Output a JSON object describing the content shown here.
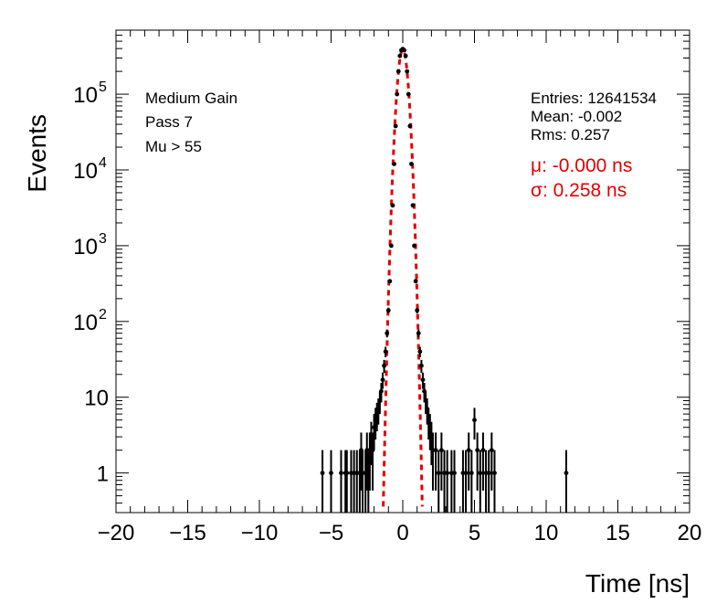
{
  "chart_data": {
    "type": "scatter",
    "title": "",
    "xlabel": "Time [ns]",
    "ylabel": "Events",
    "xlim": [
      -20,
      20
    ],
    "ylim": [
      0.3,
      700000
    ],
    "yscale": "log",
    "grid": false,
    "xticks": [
      -20,
      -15,
      -10,
      -5,
      0,
      5,
      10,
      15,
      20
    ],
    "xtick_labels": [
      "−20",
      "−15",
      "−10",
      "−5",
      "0",
      "5",
      "10",
      "15",
      "20"
    ],
    "yticks": [
      {
        "value": 1,
        "base": "1",
        "exp": ""
      },
      {
        "value": 10,
        "base": "10",
        "exp": ""
      },
      {
        "value": 100,
        "base": "10",
        "exp": "2"
      },
      {
        "value": 1000,
        "base": "10",
        "exp": "3"
      },
      {
        "value": 10000,
        "base": "10",
        "exp": "4"
      },
      {
        "value": 100000,
        "base": "10",
        "exp": "5"
      }
    ],
    "annotations": {
      "left": [
        "Medium Gain",
        "Pass 7",
        "Mu > 55"
      ],
      "stats": [
        "Entries: 12641534",
        "Mean: -0.002",
        "Rms: 0.257"
      ],
      "fit": [
        "μ: -0.000 ns",
        "σ: 0.258 ns"
      ]
    },
    "fit": {
      "type": "gaussian",
      "mu": 0.0,
      "sigma": 0.258,
      "amplitude": 390000,
      "color": "#e00000",
      "style": "dashed"
    },
    "series": [
      {
        "color": "#000000",
        "x": [
          -5.6,
          -5.0,
          -4.3,
          -4.0,
          -3.9,
          -3.6,
          -3.4,
          -3.2,
          -3.0,
          -2.9,
          -2.8,
          -2.6,
          -2.5,
          -2.4,
          -2.3,
          -2.2,
          -2.1,
          -2.0,
          -1.9,
          -1.8,
          -1.7,
          -1.6,
          -1.5,
          -1.4,
          -1.3,
          -1.2,
          -1.1,
          -1.0,
          -0.9,
          -0.8,
          -0.7,
          -0.6,
          -0.5,
          -0.4,
          -0.3,
          -0.2,
          -0.1,
          0.0,
          0.1,
          0.2,
          0.3,
          0.4,
          0.5,
          0.6,
          0.7,
          0.8,
          0.9,
          1.0,
          1.1,
          1.2,
          1.3,
          1.4,
          1.5,
          1.6,
          1.7,
          1.8,
          1.9,
          2.0,
          2.1,
          2.3,
          2.5,
          2.7,
          2.9,
          3.1,
          3.4,
          3.6,
          4.2,
          4.4,
          4.6,
          4.8,
          5.0,
          5.2,
          5.4,
          5.6,
          5.8,
          6.0,
          6.2,
          6.4,
          11.4
        ],
        "y": [
          1,
          1,
          1,
          1,
          1,
          1,
          1,
          1,
          1,
          2,
          1,
          1,
          2,
          1,
          2,
          3,
          2,
          4,
          5,
          6,
          7,
          9,
          12,
          17,
          26,
          40,
          70,
          140,
          340,
          1000,
          3400,
          12000,
          38000,
          100000,
          200000,
          320000,
          380000,
          395000,
          380000,
          320000,
          200000,
          100000,
          38000,
          12000,
          3400,
          1000,
          340,
          140,
          70,
          40,
          26,
          17,
          12,
          9,
          7,
          5,
          4,
          3,
          2,
          2,
          1,
          2,
          1,
          1,
          1,
          1,
          1,
          1,
          2,
          1,
          5,
          2,
          1,
          2,
          1,
          1,
          2,
          1,
          1
        ]
      }
    ]
  }
}
